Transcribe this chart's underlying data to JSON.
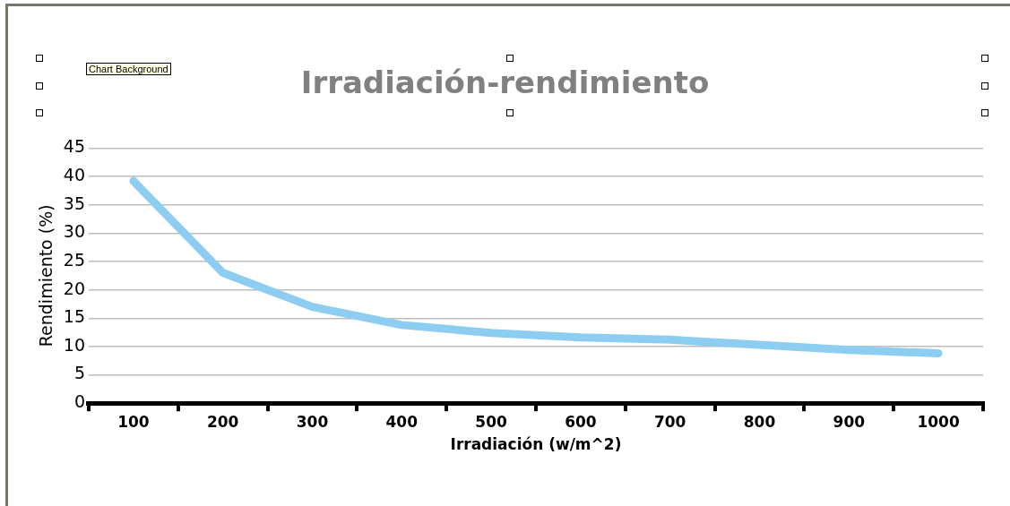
{
  "chart_data": {
    "type": "line",
    "title": "Irradiación-rendimiento",
    "xlabel": "Irradiación (w/m^2)",
    "ylabel": "Rendimiento (%)",
    "categories": [
      "100",
      "200",
      "300",
      "400",
      "500",
      "600",
      "700",
      "800",
      "900",
      "1000"
    ],
    "values": [
      39.2,
      23,
      17,
      13.8,
      12.4,
      11.6,
      11.2,
      10.3,
      9.4,
      8.8
    ],
    "color": "#8ecdf2",
    "ylim": [
      0,
      45
    ],
    "yticks": [
      0,
      5,
      10,
      15,
      20,
      25,
      30,
      35,
      40,
      45
    ],
    "grid": "y",
    "legend": false,
    "marker": "none",
    "line_style": "solid",
    "annotations": [
      "Chart Background"
    ]
  }
}
